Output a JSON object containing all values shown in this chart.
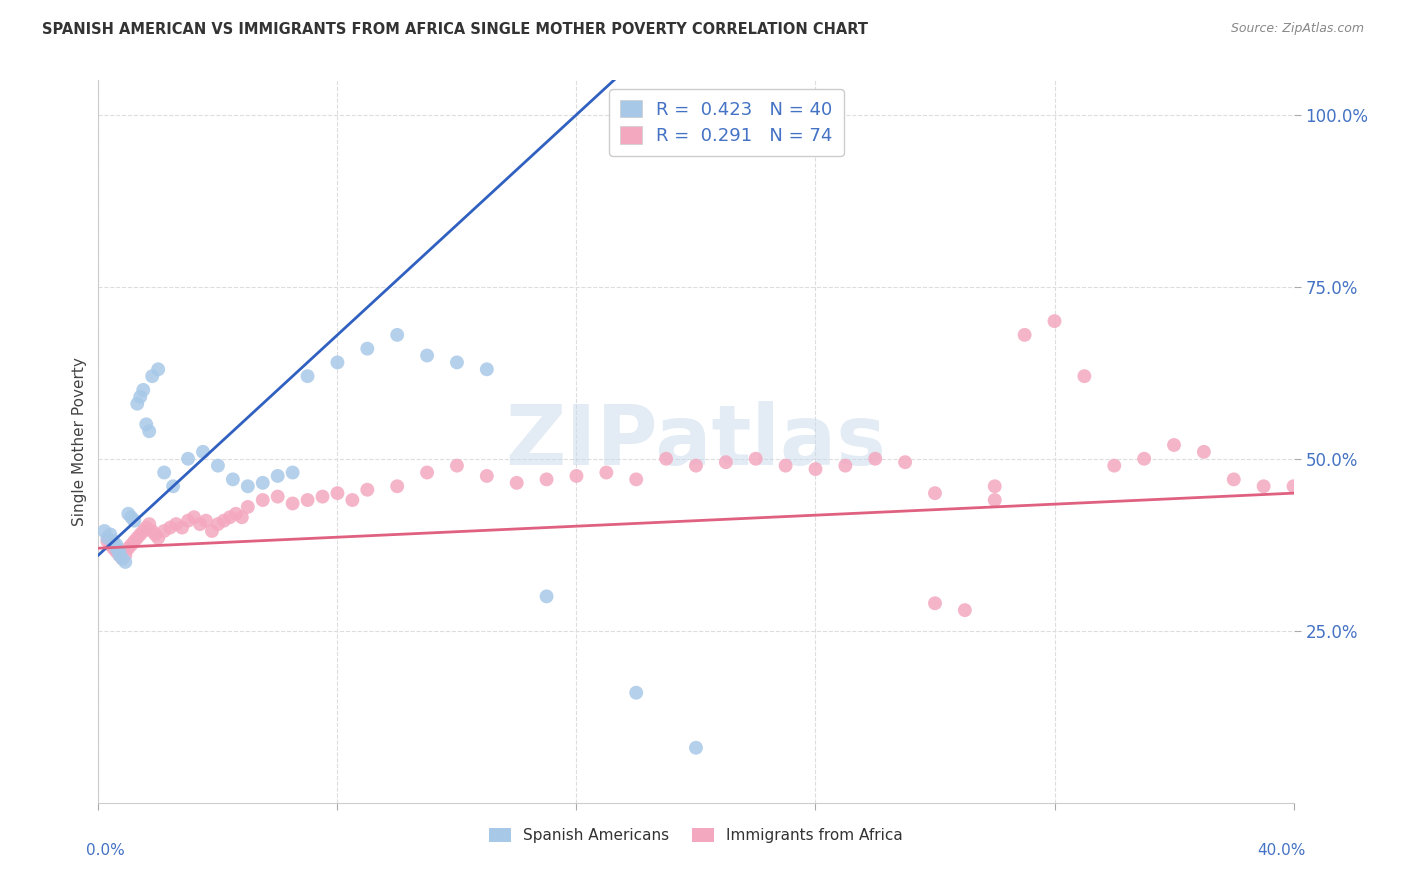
{
  "title": "SPANISH AMERICAN VS IMMIGRANTS FROM AFRICA SINGLE MOTHER POVERTY CORRELATION CHART",
  "source": "Source: ZipAtlas.com",
  "ylabel": "Single Mother Poverty",
  "ytick_labels": [
    "25.0%",
    "50.0%",
    "75.0%",
    "100.0%"
  ],
  "ytick_values": [
    0.25,
    0.5,
    0.75,
    1.0
  ],
  "xlim": [
    0.0,
    0.4
  ],
  "ylim": [
    0.0,
    1.05
  ],
  "R_blue": "0.423",
  "N_blue": "40",
  "R_pink": "0.291",
  "N_pink": "74",
  "color_blue": "#a8c8e8",
  "color_pink": "#f4a8c0",
  "color_blue_line": "#3060c0",
  "color_pink_line": "#e06080",
  "color_blue_text": "#4472c4",
  "watermark": "ZIPatlas",
  "blue_scatter_x": [
    0.002,
    0.003,
    0.004,
    0.005,
    0.006,
    0.006,
    0.007,
    0.007,
    0.008,
    0.009,
    0.01,
    0.011,
    0.012,
    0.013,
    0.014,
    0.015,
    0.016,
    0.017,
    0.018,
    0.02,
    0.022,
    0.025,
    0.03,
    0.035,
    0.04,
    0.045,
    0.05,
    0.055,
    0.06,
    0.065,
    0.07,
    0.08,
    0.09,
    0.1,
    0.11,
    0.12,
    0.13,
    0.15,
    0.18,
    0.2
  ],
  "blue_scatter_y": [
    0.395,
    0.385,
    0.39,
    0.38,
    0.375,
    0.37,
    0.365,
    0.36,
    0.355,
    0.35,
    0.42,
    0.415,
    0.41,
    0.58,
    0.59,
    0.6,
    0.55,
    0.54,
    0.62,
    0.63,
    0.48,
    0.46,
    0.5,
    0.51,
    0.49,
    0.47,
    0.46,
    0.465,
    0.475,
    0.48,
    0.62,
    0.64,
    0.66,
    0.68,
    0.65,
    0.64,
    0.63,
    0.3,
    0.16,
    0.08
  ],
  "pink_scatter_x": [
    0.003,
    0.004,
    0.005,
    0.006,
    0.007,
    0.008,
    0.009,
    0.01,
    0.011,
    0.012,
    0.013,
    0.014,
    0.015,
    0.016,
    0.017,
    0.018,
    0.019,
    0.02,
    0.022,
    0.024,
    0.026,
    0.028,
    0.03,
    0.032,
    0.034,
    0.036,
    0.038,
    0.04,
    0.042,
    0.044,
    0.046,
    0.048,
    0.05,
    0.055,
    0.06,
    0.065,
    0.07,
    0.075,
    0.08,
    0.085,
    0.09,
    0.1,
    0.11,
    0.12,
    0.13,
    0.14,
    0.15,
    0.16,
    0.17,
    0.18,
    0.19,
    0.2,
    0.21,
    0.22,
    0.23,
    0.24,
    0.25,
    0.26,
    0.27,
    0.28,
    0.29,
    0.3,
    0.31,
    0.32,
    0.33,
    0.34,
    0.35,
    0.36,
    0.37,
    0.38,
    0.39,
    0.4,
    0.28,
    0.3
  ],
  "pink_scatter_y": [
    0.38,
    0.375,
    0.37,
    0.365,
    0.36,
    0.355,
    0.36,
    0.37,
    0.375,
    0.38,
    0.385,
    0.39,
    0.395,
    0.4,
    0.405,
    0.395,
    0.39,
    0.385,
    0.395,
    0.4,
    0.405,
    0.4,
    0.41,
    0.415,
    0.405,
    0.41,
    0.395,
    0.405,
    0.41,
    0.415,
    0.42,
    0.415,
    0.43,
    0.44,
    0.445,
    0.435,
    0.44,
    0.445,
    0.45,
    0.44,
    0.455,
    0.46,
    0.48,
    0.49,
    0.475,
    0.465,
    0.47,
    0.475,
    0.48,
    0.47,
    0.5,
    0.49,
    0.495,
    0.5,
    0.49,
    0.485,
    0.49,
    0.5,
    0.495,
    0.29,
    0.28,
    0.46,
    0.68,
    0.7,
    0.62,
    0.49,
    0.5,
    0.52,
    0.51,
    0.47,
    0.46,
    0.46,
    0.45,
    0.44
  ]
}
